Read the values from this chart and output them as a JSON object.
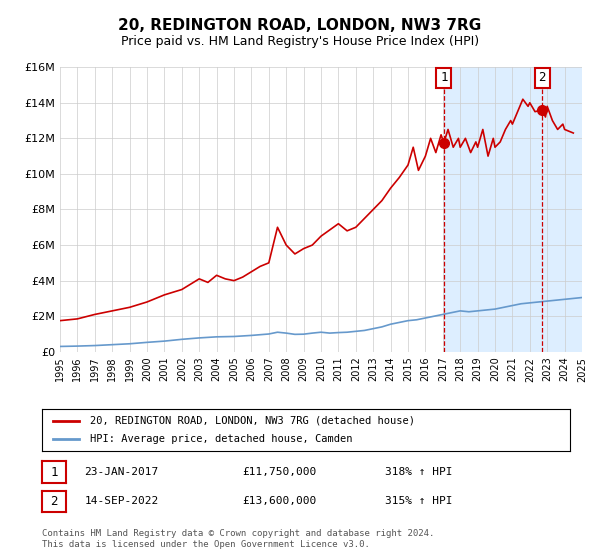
{
  "title": "20, REDINGTON ROAD, LONDON, NW3 7RG",
  "subtitle": "Price paid vs. HM Land Registry's House Price Index (HPI)",
  "xlabel": "",
  "ylabel": "",
  "ylim": [
    0,
    16000000
  ],
  "xlim": [
    1995,
    2025
  ],
  "yticks": [
    0,
    2000000,
    4000000,
    6000000,
    8000000,
    10000000,
    12000000,
    14000000,
    16000000
  ],
  "ytick_labels": [
    "£0",
    "£2M",
    "£4M",
    "£6M",
    "£8M",
    "£10M",
    "£12M",
    "£14M",
    "£16M"
  ],
  "xticks": [
    1995,
    1996,
    1997,
    1998,
    1999,
    2000,
    2001,
    2002,
    2003,
    2004,
    2005,
    2006,
    2007,
    2008,
    2009,
    2010,
    2011,
    2012,
    2013,
    2014,
    2015,
    2016,
    2017,
    2018,
    2019,
    2020,
    2021,
    2022,
    2023,
    2024,
    2025
  ],
  "red_line_color": "#cc0000",
  "blue_line_color": "#6699cc",
  "shade_color": "#ddeeff",
  "vline1_x": 2017.06,
  "vline2_x": 2022.71,
  "marker1_x": 2017.06,
  "marker1_y": 11750000,
  "marker2_x": 2022.71,
  "marker2_y": 13600000,
  "legend_entries": [
    "20, REDINGTON ROAD, LONDON, NW3 7RG (detached house)",
    "HPI: Average price, detached house, Camden"
  ],
  "table_rows": [
    {
      "num": "1",
      "date": "23-JAN-2017",
      "price": "£11,750,000",
      "hpi": "318% ↑ HPI"
    },
    {
      "num": "2",
      "date": "14-SEP-2022",
      "price": "£13,600,000",
      "hpi": "315% ↑ HPI"
    }
  ],
  "footnote1": "Contains HM Land Registry data © Crown copyright and database right 2024.",
  "footnote2": "This data is licensed under the Open Government Licence v3.0.",
  "background_color": "#ffffff",
  "plot_bg_color": "#ffffff",
  "grid_color": "#cccccc"
}
